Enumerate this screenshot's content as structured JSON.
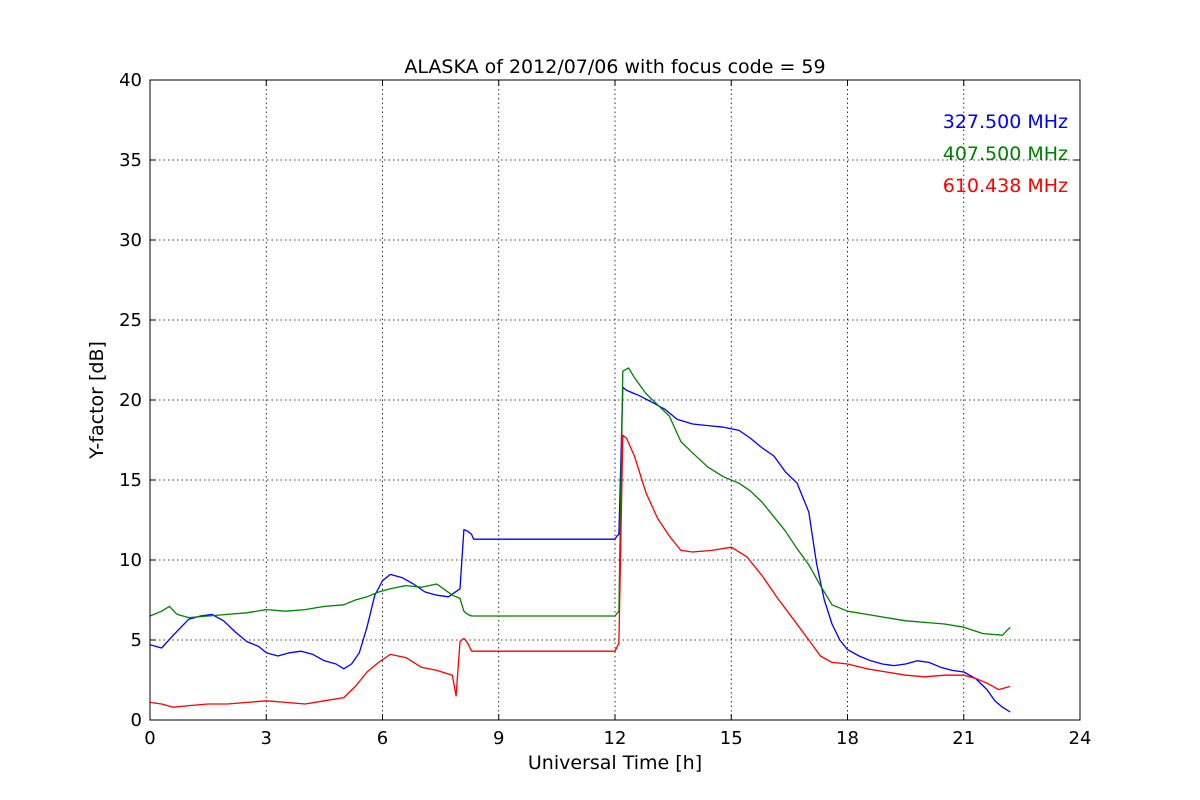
{
  "chart_data": {
    "type": "line",
    "title": "ALASKA of 2012/07/06 with focus code = 59",
    "xlabel": "Universal Time [h]",
    "ylabel": "Y-factor [dB]",
    "xlim": [
      0,
      24
    ],
    "ylim": [
      0,
      40
    ],
    "xticks": [
      0,
      3,
      6,
      9,
      12,
      15,
      18,
      21,
      24
    ],
    "yticks": [
      0,
      5,
      10,
      15,
      20,
      25,
      30,
      35,
      40
    ],
    "xtick_labels": [
      "0",
      "3",
      "6",
      "9",
      "12",
      "15",
      "18",
      "21",
      "24"
    ],
    "ytick_labels": [
      "0",
      "5",
      "10",
      "15",
      "20",
      "25",
      "30",
      "35",
      "40"
    ],
    "grid": true,
    "legend_position": "top-right",
    "series": [
      {
        "name": "327.500 MHz",
        "color": "#0000ff",
        "x": [
          0,
          0.3,
          0.6,
          0.8,
          1.0,
          1.3,
          1.6,
          1.9,
          2.2,
          2.5,
          2.8,
          3.0,
          3.3,
          3.6,
          3.9,
          4.2,
          4.5,
          4.8,
          5.0,
          5.2,
          5.4,
          5.6,
          5.8,
          6.0,
          6.2,
          6.5,
          6.8,
          7.1,
          7.4,
          7.7,
          8.0,
          8.1,
          8.2,
          8.3,
          8.35,
          10.0,
          12.0,
          12.05,
          12.1,
          12.2,
          12.3,
          12.6,
          13.0,
          13.3,
          13.6,
          14.0,
          14.4,
          14.8,
          15.2,
          15.5,
          15.8,
          16.1,
          16.4,
          16.7,
          17.0,
          17.2,
          17.4,
          17.6,
          17.8,
          18.0,
          18.3,
          18.6,
          18.9,
          19.2,
          19.5,
          19.8,
          20.1,
          20.4,
          20.7,
          21.0,
          21.3,
          21.6,
          21.8,
          22.0,
          22.2
        ],
        "y": [
          4.7,
          4.5,
          5.3,
          5.8,
          6.3,
          6.5,
          6.6,
          6.2,
          5.5,
          4.9,
          4.6,
          4.2,
          4.0,
          4.2,
          4.3,
          4.1,
          3.7,
          3.5,
          3.2,
          3.5,
          4.2,
          5.8,
          7.8,
          8.7,
          9.1,
          8.9,
          8.5,
          8.0,
          7.8,
          7.7,
          8.2,
          11.9,
          11.8,
          11.6,
          11.3,
          11.3,
          11.3,
          11.5,
          11.6,
          20.8,
          20.6,
          20.3,
          19.8,
          19.4,
          18.8,
          18.5,
          18.4,
          18.3,
          18.1,
          17.6,
          17.0,
          16.5,
          15.5,
          14.8,
          13.0,
          9.8,
          7.5,
          6.0,
          5.0,
          4.4,
          4.0,
          3.7,
          3.5,
          3.4,
          3.5,
          3.7,
          3.6,
          3.3,
          3.1,
          3.0,
          2.6,
          1.9,
          1.2,
          0.8,
          0.5
        ]
      },
      {
        "name": "407.500 MHz",
        "color": "#008000",
        "x": [
          0,
          0.3,
          0.5,
          0.7,
          1.0,
          1.5,
          2.0,
          2.5,
          3.0,
          3.5,
          4.0,
          4.5,
          5.0,
          5.3,
          5.6,
          5.9,
          6.2,
          6.6,
          7.0,
          7.4,
          7.8,
          8.0,
          8.1,
          8.2,
          8.3,
          10.0,
          12.0,
          12.1,
          12.2,
          12.35,
          12.5,
          12.8,
          13.1,
          13.4,
          13.7,
          14.0,
          14.4,
          14.8,
          15.2,
          15.5,
          15.8,
          16.1,
          16.4,
          16.7,
          17.0,
          17.3,
          17.6,
          18.0,
          18.5,
          19.0,
          19.5,
          20.0,
          20.5,
          21.0,
          21.5,
          22.0,
          22.2
        ],
        "y": [
          6.5,
          6.8,
          7.1,
          6.6,
          6.4,
          6.5,
          6.6,
          6.7,
          6.9,
          6.8,
          6.9,
          7.1,
          7.2,
          7.5,
          7.7,
          8.0,
          8.2,
          8.4,
          8.3,
          8.5,
          7.8,
          7.6,
          6.8,
          6.6,
          6.5,
          6.5,
          6.5,
          6.8,
          21.8,
          22.0,
          21.4,
          20.4,
          19.7,
          19.0,
          17.4,
          16.7,
          15.8,
          15.2,
          14.8,
          14.3,
          13.6,
          12.7,
          11.8,
          10.7,
          9.7,
          8.4,
          7.2,
          6.8,
          6.6,
          6.4,
          6.2,
          6.1,
          6.0,
          5.8,
          5.4,
          5.3,
          5.8
        ]
      },
      {
        "name": "610.438 MHz",
        "color": "#ff0000",
        "x": [
          0,
          0.3,
          0.6,
          1.0,
          1.5,
          2.0,
          2.5,
          3.0,
          3.5,
          4.0,
          4.5,
          5.0,
          5.3,
          5.6,
          5.9,
          6.2,
          6.6,
          7.0,
          7.4,
          7.8,
          7.9,
          8.0,
          8.1,
          8.2,
          8.3,
          10.0,
          12.0,
          12.1,
          12.2,
          12.3,
          12.5,
          12.8,
          13.1,
          13.4,
          13.7,
          14.0,
          14.5,
          15.0,
          15.4,
          15.8,
          16.2,
          16.6,
          17.0,
          17.3,
          17.6,
          18.0,
          18.5,
          19.0,
          19.5,
          20.0,
          20.5,
          21.0,
          21.3,
          21.6,
          21.9,
          22.2
        ],
        "y": [
          1.1,
          1.0,
          0.8,
          0.9,
          1.0,
          1.0,
          1.1,
          1.2,
          1.1,
          1.0,
          1.2,
          1.4,
          2.1,
          3.0,
          3.6,
          4.1,
          3.9,
          3.3,
          3.1,
          2.8,
          1.5,
          4.9,
          5.1,
          4.8,
          4.3,
          4.3,
          4.3,
          4.8,
          17.8,
          17.6,
          16.5,
          14.2,
          12.6,
          11.5,
          10.6,
          10.5,
          10.6,
          10.8,
          10.2,
          9.0,
          7.6,
          6.3,
          5.0,
          4.0,
          3.6,
          3.5,
          3.2,
          3.0,
          2.8,
          2.7,
          2.8,
          2.8,
          2.6,
          2.3,
          1.9,
          2.1
        ]
      }
    ]
  }
}
